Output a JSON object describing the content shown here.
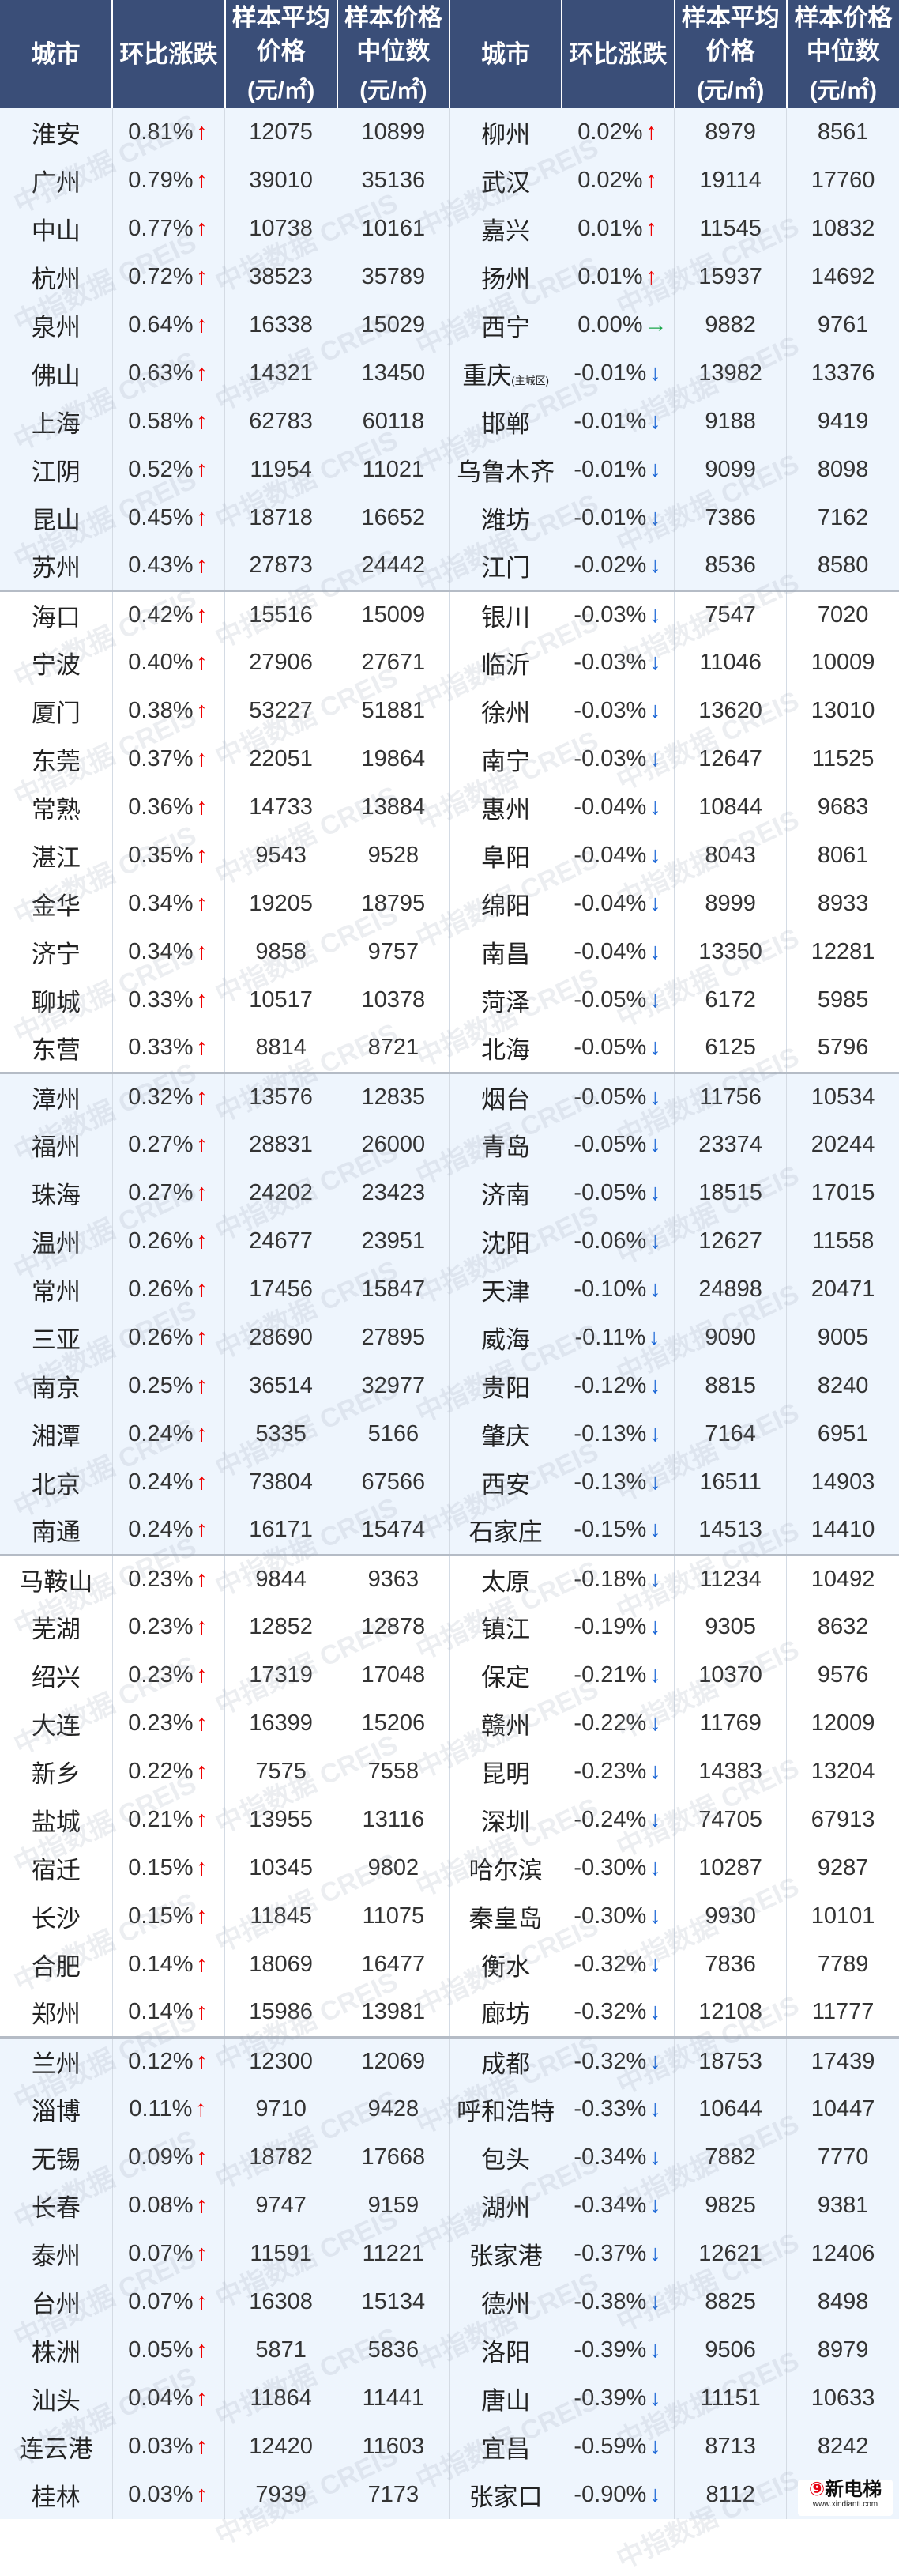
{
  "headers": {
    "city": "城市",
    "change": "环比涨跌",
    "avg": "样本平均价格",
    "avg_unit": "(元/㎡)",
    "median": "样本价格中位数",
    "median_unit": "(元/㎡)"
  },
  "colors": {
    "header_bg": "#3a4e78",
    "up": "#f00000",
    "down": "#1a66d6",
    "flat": "#19a649"
  },
  "arrows": {
    "up": "↑",
    "down": "↓",
    "flat": "→"
  },
  "watermark": "中指数据 CREIS",
  "logo": {
    "name": "新电梯",
    "url": "www.xindianti.com"
  },
  "rows": [
    {
      "left": {
        "city": "淮安",
        "change": "0.81%",
        "dir": "up",
        "avg": "12075",
        "median": "10899"
      },
      "right": {
        "city": "柳州",
        "change": "0.02%",
        "dir": "up",
        "avg": "8979",
        "median": "8561"
      }
    },
    {
      "left": {
        "city": "广州",
        "change": "0.79%",
        "dir": "up",
        "avg": "39010",
        "median": "35136"
      },
      "right": {
        "city": "武汉",
        "change": "0.02%",
        "dir": "up",
        "avg": "19114",
        "median": "17760"
      }
    },
    {
      "left": {
        "city": "中山",
        "change": "0.77%",
        "dir": "up",
        "avg": "10738",
        "median": "10161"
      },
      "right": {
        "city": "嘉兴",
        "change": "0.01%",
        "dir": "up",
        "avg": "11545",
        "median": "10832"
      }
    },
    {
      "left": {
        "city": "杭州",
        "change": "0.72%",
        "dir": "up",
        "avg": "38523",
        "median": "35789"
      },
      "right": {
        "city": "扬州",
        "change": "0.01%",
        "dir": "up",
        "avg": "15937",
        "median": "14692"
      }
    },
    {
      "left": {
        "city": "泉州",
        "change": "0.64%",
        "dir": "up",
        "avg": "16338",
        "median": "15029"
      },
      "right": {
        "city": "西宁",
        "change": "0.00%",
        "dir": "flat",
        "avg": "9882",
        "median": "9761"
      }
    },
    {
      "left": {
        "city": "佛山",
        "change": "0.63%",
        "dir": "up",
        "avg": "14321",
        "median": "13450"
      },
      "right": {
        "city": "重庆",
        "note": "(主城区)",
        "change": "-0.01%",
        "dir": "down",
        "avg": "13982",
        "median": "13376"
      }
    },
    {
      "left": {
        "city": "上海",
        "change": "0.58%",
        "dir": "up",
        "avg": "62783",
        "median": "60118"
      },
      "right": {
        "city": "邯郸",
        "change": "-0.01%",
        "dir": "down",
        "avg": "9188",
        "median": "9419"
      }
    },
    {
      "left": {
        "city": "江阴",
        "change": "0.52%",
        "dir": "up",
        "avg": "11954",
        "median": "11021"
      },
      "right": {
        "city": "乌鲁木齐",
        "change": "-0.01%",
        "dir": "down",
        "avg": "9099",
        "median": "8098"
      }
    },
    {
      "left": {
        "city": "昆山",
        "change": "0.45%",
        "dir": "up",
        "avg": "18718",
        "median": "16652"
      },
      "right": {
        "city": "潍坊",
        "change": "-0.01%",
        "dir": "down",
        "avg": "7386",
        "median": "7162"
      }
    },
    {
      "left": {
        "city": "苏州",
        "change": "0.43%",
        "dir": "up",
        "avg": "27873",
        "median": "24442"
      },
      "right": {
        "city": "江门",
        "change": "-0.02%",
        "dir": "down",
        "avg": "8536",
        "median": "8580"
      }
    },
    {
      "left": {
        "city": "海口",
        "change": "0.42%",
        "dir": "up",
        "avg": "15516",
        "median": "15009"
      },
      "right": {
        "city": "银川",
        "change": "-0.03%",
        "dir": "down",
        "avg": "7547",
        "median": "7020"
      }
    },
    {
      "left": {
        "city": "宁波",
        "change": "0.40%",
        "dir": "up",
        "avg": "27906",
        "median": "27671"
      },
      "right": {
        "city": "临沂",
        "change": "-0.03%",
        "dir": "down",
        "avg": "11046",
        "median": "10009"
      }
    },
    {
      "left": {
        "city": "厦门",
        "change": "0.38%",
        "dir": "up",
        "avg": "53227",
        "median": "51881"
      },
      "right": {
        "city": "徐州",
        "change": "-0.03%",
        "dir": "down",
        "avg": "13620",
        "median": "13010"
      }
    },
    {
      "left": {
        "city": "东莞",
        "change": "0.37%",
        "dir": "up",
        "avg": "22051",
        "median": "19864"
      },
      "right": {
        "city": "南宁",
        "change": "-0.03%",
        "dir": "down",
        "avg": "12647",
        "median": "11525"
      }
    },
    {
      "left": {
        "city": "常熟",
        "change": "0.36%",
        "dir": "up",
        "avg": "14733",
        "median": "13884"
      },
      "right": {
        "city": "惠州",
        "change": "-0.04%",
        "dir": "down",
        "avg": "10844",
        "median": "9683"
      }
    },
    {
      "left": {
        "city": "湛江",
        "change": "0.35%",
        "dir": "up",
        "avg": "9543",
        "median": "9528"
      },
      "right": {
        "city": "阜阳",
        "change": "-0.04%",
        "dir": "down",
        "avg": "8043",
        "median": "8061"
      }
    },
    {
      "left": {
        "city": "金华",
        "change": "0.34%",
        "dir": "up",
        "avg": "19205",
        "median": "18795"
      },
      "right": {
        "city": "绵阳",
        "change": "-0.04%",
        "dir": "down",
        "avg": "8999",
        "median": "8933"
      }
    },
    {
      "left": {
        "city": "济宁",
        "change": "0.34%",
        "dir": "up",
        "avg": "9858",
        "median": "9757"
      },
      "right": {
        "city": "南昌",
        "change": "-0.04%",
        "dir": "down",
        "avg": "13350",
        "median": "12281"
      }
    },
    {
      "left": {
        "city": "聊城",
        "change": "0.33%",
        "dir": "up",
        "avg": "10517",
        "median": "10378"
      },
      "right": {
        "city": "菏泽",
        "change": "-0.05%",
        "dir": "down",
        "avg": "6172",
        "median": "5985"
      }
    },
    {
      "left": {
        "city": "东营",
        "change": "0.33%",
        "dir": "up",
        "avg": "8814",
        "median": "8721"
      },
      "right": {
        "city": "北海",
        "change": "-0.05%",
        "dir": "down",
        "avg": "6125",
        "median": "5796"
      }
    },
    {
      "left": {
        "city": "漳州",
        "change": "0.32%",
        "dir": "up",
        "avg": "13576",
        "median": "12835"
      },
      "right": {
        "city": "烟台",
        "change": "-0.05%",
        "dir": "down",
        "avg": "11756",
        "median": "10534"
      }
    },
    {
      "left": {
        "city": "福州",
        "change": "0.27%",
        "dir": "up",
        "avg": "28831",
        "median": "26000"
      },
      "right": {
        "city": "青岛",
        "change": "-0.05%",
        "dir": "down",
        "avg": "23374",
        "median": "20244"
      }
    },
    {
      "left": {
        "city": "珠海",
        "change": "0.27%",
        "dir": "up",
        "avg": "24202",
        "median": "23423"
      },
      "right": {
        "city": "济南",
        "change": "-0.05%",
        "dir": "down",
        "avg": "18515",
        "median": "17015"
      }
    },
    {
      "left": {
        "city": "温州",
        "change": "0.26%",
        "dir": "up",
        "avg": "24677",
        "median": "23951"
      },
      "right": {
        "city": "沈阳",
        "change": "-0.06%",
        "dir": "down",
        "avg": "12627",
        "median": "11558"
      }
    },
    {
      "left": {
        "city": "常州",
        "change": "0.26%",
        "dir": "up",
        "avg": "17456",
        "median": "15847"
      },
      "right": {
        "city": "天津",
        "change": "-0.10%",
        "dir": "down",
        "avg": "24898",
        "median": "20471"
      }
    },
    {
      "left": {
        "city": "三亚",
        "change": "0.26%",
        "dir": "up",
        "avg": "28690",
        "median": "27895"
      },
      "right": {
        "city": "威海",
        "change": "-0.11%",
        "dir": "down",
        "avg": "9090",
        "median": "9005"
      }
    },
    {
      "left": {
        "city": "南京",
        "change": "0.25%",
        "dir": "up",
        "avg": "36514",
        "median": "32977"
      },
      "right": {
        "city": "贵阳",
        "change": "-0.12%",
        "dir": "down",
        "avg": "8815",
        "median": "8240"
      }
    },
    {
      "left": {
        "city": "湘潭",
        "change": "0.24%",
        "dir": "up",
        "avg": "5335",
        "median": "5166"
      },
      "right": {
        "city": "肇庆",
        "change": "-0.13%",
        "dir": "down",
        "avg": "7164",
        "median": "6951"
      }
    },
    {
      "left": {
        "city": "北京",
        "change": "0.24%",
        "dir": "up",
        "avg": "73804",
        "median": "67566"
      },
      "right": {
        "city": "西安",
        "change": "-0.13%",
        "dir": "down",
        "avg": "16511",
        "median": "14903"
      }
    },
    {
      "left": {
        "city": "南通",
        "change": "0.24%",
        "dir": "up",
        "avg": "16171",
        "median": "15474"
      },
      "right": {
        "city": "石家庄",
        "change": "-0.15%",
        "dir": "down",
        "avg": "14513",
        "median": "14410"
      }
    },
    {
      "left": {
        "city": "马鞍山",
        "change": "0.23%",
        "dir": "up",
        "avg": "9844",
        "median": "9363"
      },
      "right": {
        "city": "太原",
        "change": "-0.18%",
        "dir": "down",
        "avg": "11234",
        "median": "10492"
      }
    },
    {
      "left": {
        "city": "芜湖",
        "change": "0.23%",
        "dir": "up",
        "avg": "12852",
        "median": "12878"
      },
      "right": {
        "city": "镇江",
        "change": "-0.19%",
        "dir": "down",
        "avg": "9305",
        "median": "8632"
      }
    },
    {
      "left": {
        "city": "绍兴",
        "change": "0.23%",
        "dir": "up",
        "avg": "17319",
        "median": "17048"
      },
      "right": {
        "city": "保定",
        "change": "-0.21%",
        "dir": "down",
        "avg": "10370",
        "median": "9576"
      }
    },
    {
      "left": {
        "city": "大连",
        "change": "0.23%",
        "dir": "up",
        "avg": "16399",
        "median": "15206"
      },
      "right": {
        "city": "赣州",
        "change": "-0.22%",
        "dir": "down",
        "avg": "11769",
        "median": "12009"
      }
    },
    {
      "left": {
        "city": "新乡",
        "change": "0.22%",
        "dir": "up",
        "avg": "7575",
        "median": "7558"
      },
      "right": {
        "city": "昆明",
        "change": "-0.23%",
        "dir": "down",
        "avg": "14383",
        "median": "13204"
      }
    },
    {
      "left": {
        "city": "盐城",
        "change": "0.21%",
        "dir": "up",
        "avg": "13955",
        "median": "13116"
      },
      "right": {
        "city": "深圳",
        "change": "-0.24%",
        "dir": "down",
        "avg": "74705",
        "median": "67913"
      }
    },
    {
      "left": {
        "city": "宿迁",
        "change": "0.15%",
        "dir": "up",
        "avg": "10345",
        "median": "9802"
      },
      "right": {
        "city": "哈尔滨",
        "change": "-0.30%",
        "dir": "down",
        "avg": "10287",
        "median": "9287"
      }
    },
    {
      "left": {
        "city": "长沙",
        "change": "0.15%",
        "dir": "up",
        "avg": "11845",
        "median": "11075"
      },
      "right": {
        "city": "秦皇岛",
        "change": "-0.30%",
        "dir": "down",
        "avg": "9930",
        "median": "10101"
      }
    },
    {
      "left": {
        "city": "合肥",
        "change": "0.14%",
        "dir": "up",
        "avg": "18069",
        "median": "16477"
      },
      "right": {
        "city": "衡水",
        "change": "-0.32%",
        "dir": "down",
        "avg": "7836",
        "median": "7789"
      }
    },
    {
      "left": {
        "city": "郑州",
        "change": "0.14%",
        "dir": "up",
        "avg": "15986",
        "median": "13981"
      },
      "right": {
        "city": "廊坊",
        "change": "-0.32%",
        "dir": "down",
        "avg": "12108",
        "median": "11777"
      }
    },
    {
      "left": {
        "city": "兰州",
        "change": "0.12%",
        "dir": "up",
        "avg": "12300",
        "median": "12069"
      },
      "right": {
        "city": "成都",
        "change": "-0.32%",
        "dir": "down",
        "avg": "18753",
        "median": "17439"
      }
    },
    {
      "left": {
        "city": "淄博",
        "change": "0.11%",
        "dir": "up",
        "avg": "9710",
        "median": "9428"
      },
      "right": {
        "city": "呼和浩特",
        "change": "-0.33%",
        "dir": "down",
        "avg": "10644",
        "median": "10447"
      }
    },
    {
      "left": {
        "city": "无锡",
        "change": "0.09%",
        "dir": "up",
        "avg": "18782",
        "median": "17668"
      },
      "right": {
        "city": "包头",
        "change": "-0.34%",
        "dir": "down",
        "avg": "7882",
        "median": "7770"
      }
    },
    {
      "left": {
        "city": "长春",
        "change": "0.08%",
        "dir": "up",
        "avg": "9747",
        "median": "9159"
      },
      "right": {
        "city": "湖州",
        "change": "-0.34%",
        "dir": "down",
        "avg": "9825",
        "median": "9381"
      }
    },
    {
      "left": {
        "city": "泰州",
        "change": "0.07%",
        "dir": "up",
        "avg": "11591",
        "median": "11221"
      },
      "right": {
        "city": "张家港",
        "change": "-0.37%",
        "dir": "down",
        "avg": "12621",
        "median": "12406"
      }
    },
    {
      "left": {
        "city": "台州",
        "change": "0.07%",
        "dir": "up",
        "avg": "16308",
        "median": "15134"
      },
      "right": {
        "city": "德州",
        "change": "-0.38%",
        "dir": "down",
        "avg": "8825",
        "median": "8498"
      }
    },
    {
      "left": {
        "city": "株洲",
        "change": "0.05%",
        "dir": "up",
        "avg": "5871",
        "median": "5836"
      },
      "right": {
        "city": "洛阳",
        "change": "-0.39%",
        "dir": "down",
        "avg": "9506",
        "median": "8979"
      }
    },
    {
      "left": {
        "city": "汕头",
        "change": "0.04%",
        "dir": "up",
        "avg": "11864",
        "median": "11441"
      },
      "right": {
        "city": "唐山",
        "change": "-0.39%",
        "dir": "down",
        "avg": "11151",
        "median": "10633"
      }
    },
    {
      "left": {
        "city": "连云港",
        "change": "0.03%",
        "dir": "up",
        "avg": "12420",
        "median": "11603"
      },
      "right": {
        "city": "宜昌",
        "change": "-0.59%",
        "dir": "down",
        "avg": "8713",
        "median": "8242"
      }
    },
    {
      "left": {
        "city": "桂林",
        "change": "0.03%",
        "dir": "up",
        "avg": "7939",
        "median": "7173"
      },
      "right": {
        "city": "张家口",
        "change": "-0.90%",
        "dir": "down",
        "avg": "8112",
        "median": ""
      }
    }
  ]
}
